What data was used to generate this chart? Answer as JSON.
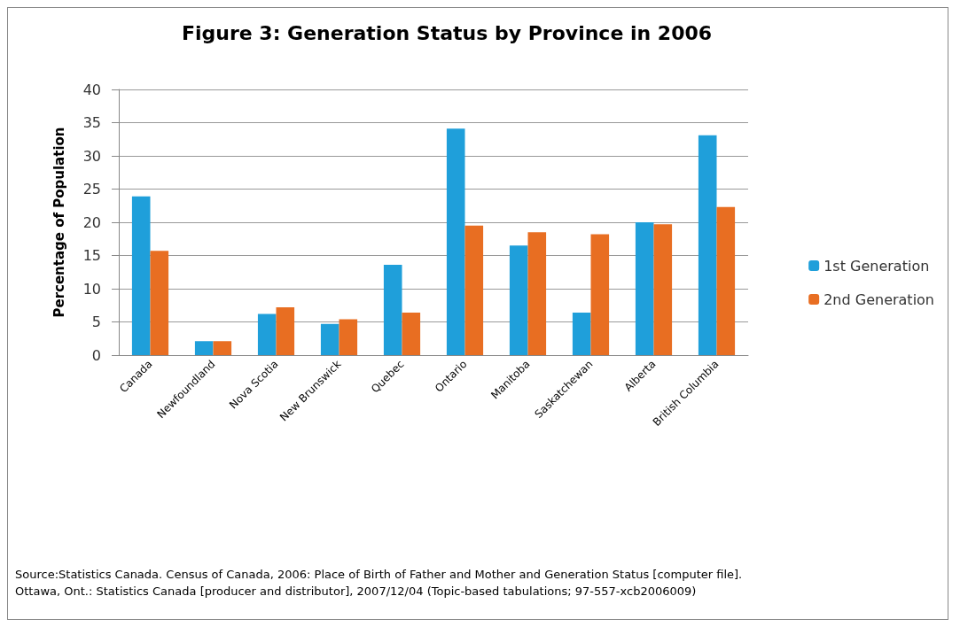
{
  "chart_data": {
    "type": "bar",
    "title": "Figure 3: Generation Status by Province in 2006",
    "ylabel": "Percentage of Population",
    "categories": [
      "Canada",
      "Newfoundland",
      "Nova Scotia",
      "New Brunswick",
      "Quebec",
      "Ontario",
      "Manitoba",
      "Saskatchewan",
      "Alberta",
      "British Columbia"
    ],
    "series": [
      {
        "name": "1st Generation",
        "color": "#1f9fda",
        "values": [
          23.9,
          2.1,
          6.2,
          4.7,
          13.6,
          34.1,
          16.5,
          6.4,
          20.0,
          33.1
        ]
      },
      {
        "name": "2nd Generation",
        "color": "#e86e22",
        "values": [
          15.7,
          2.1,
          7.2,
          5.4,
          6.4,
          19.5,
          18.5,
          18.2,
          19.7,
          22.3
        ]
      }
    ],
    "ylim": [
      0,
      40
    ],
    "yticks": [
      0,
      5,
      10,
      15,
      20,
      25,
      30,
      35,
      40
    ],
    "grid": "y",
    "legend": "right",
    "annotations": [
      "Source:Statistics Canada. Census of Canada, 2006: Place of Birth of Father and Mother and Generation Status [computer file]. Ottawa, Ont.: Statistics Canada [producer and distributor], 2007/12/04 (Topic-based tabulations; 97-557-xcb2006009)"
    ]
  }
}
